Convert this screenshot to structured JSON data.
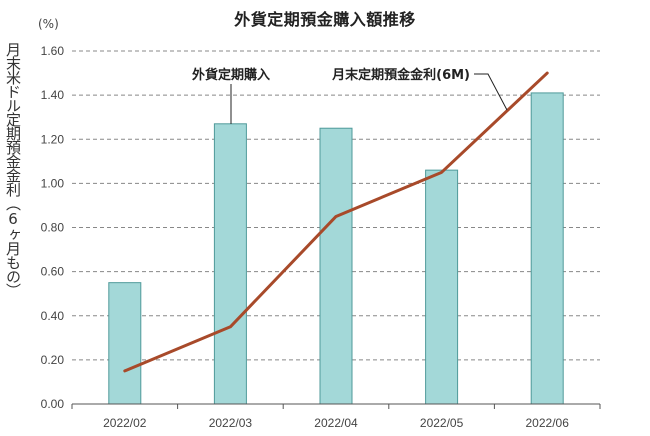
{
  "chart": {
    "title": "外貨定期預金購入額推移",
    "unit_label": "(%)",
    "ylabel": "月末米ドル定期預金金利（6ヶ月もの）",
    "annotations": {
      "bar_label": "外貨定期購入",
      "line_label": "月末定期預金金利(6M)"
    },
    "colors": {
      "bar_fill": "#a3d8d8",
      "bar_stroke": "#4f9a9a",
      "line": "#a84a2a",
      "grid": "#888888"
    }
  },
  "chart_data": {
    "type": "bar",
    "title": "外貨定期預金購入額推移",
    "xlabel": "",
    "ylabel": "月末米ドル定期預金金利（6ヶ月もの）",
    "y_unit": "(%)",
    "ylim": [
      0,
      1.6
    ],
    "yticks": [
      "0.00",
      "0.20",
      "0.40",
      "0.60",
      "0.80",
      "1.00",
      "1.20",
      "1.40",
      "1.60"
    ],
    "grid": true,
    "categories": [
      "2022/02",
      "2022/03",
      "2022/04",
      "2022/05",
      "2022/06"
    ],
    "series": [
      {
        "name": "外貨定期購入",
        "type": "bar",
        "values": [
          0.55,
          1.27,
          1.25,
          1.06,
          1.41
        ]
      },
      {
        "name": "月末定期預金金利(6M)",
        "type": "line",
        "values": [
          0.15,
          0.35,
          0.85,
          1.05,
          1.5
        ]
      }
    ]
  }
}
